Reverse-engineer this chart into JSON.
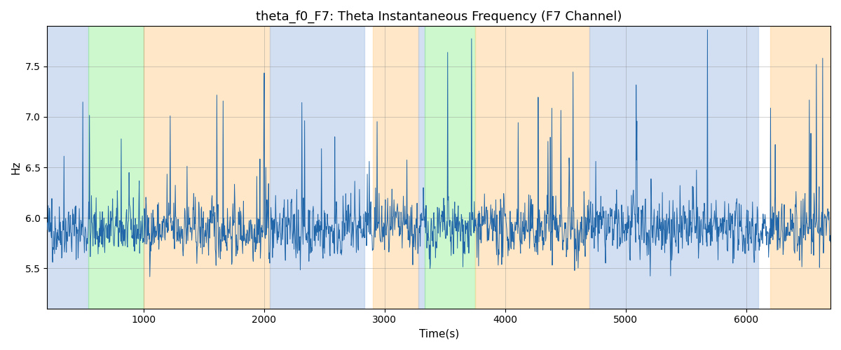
{
  "title": "theta_f0_F7: Theta Instantaneous Frequency (F7 Channel)",
  "xlabel": "Time(s)",
  "ylabel": "Hz",
  "xlim": [
    200,
    6700
  ],
  "ylim": [
    5.1,
    7.9
  ],
  "yticks": [
    5.5,
    6.0,
    6.5,
    7.0,
    7.5
  ],
  "xticks": [
    1000,
    2000,
    3000,
    4000,
    5000,
    6000
  ],
  "line_color": "#2166a8",
  "line_width": 0.7,
  "bg_regions": [
    {
      "start": 200,
      "end": 540,
      "color": "#aec6e8",
      "alpha": 0.55
    },
    {
      "start": 540,
      "end": 1000,
      "color": "#90ee90",
      "alpha": 0.45
    },
    {
      "start": 1000,
      "end": 2050,
      "color": "#ffd59a",
      "alpha": 0.55
    },
    {
      "start": 2050,
      "end": 2830,
      "color": "#aec6e8",
      "alpha": 0.55
    },
    {
      "start": 2900,
      "end": 3280,
      "color": "#ffd59a",
      "alpha": 0.55
    },
    {
      "start": 3280,
      "end": 3330,
      "color": "#aec6e8",
      "alpha": 0.55
    },
    {
      "start": 3330,
      "end": 3750,
      "color": "#90ee90",
      "alpha": 0.45
    },
    {
      "start": 3750,
      "end": 4700,
      "color": "#ffd59a",
      "alpha": 0.55
    },
    {
      "start": 4700,
      "end": 6100,
      "color": "#aec6e8",
      "alpha": 0.55
    },
    {
      "start": 6200,
      "end": 6700,
      "color": "#ffd59a",
      "alpha": 0.55
    }
  ],
  "seed": 42,
  "n_points": 2000,
  "base_freq": 5.88,
  "noise_std": 0.14,
  "figsize": [
    12,
    5
  ],
  "dpi": 100
}
